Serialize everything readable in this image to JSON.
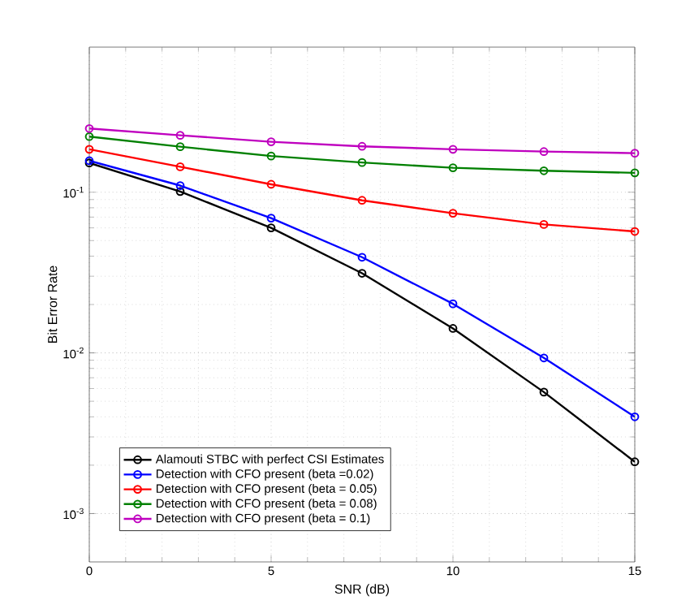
{
  "chart_data": {
    "type": "line",
    "xlabel": "SNR (dB)",
    "ylabel": "Bit Error Rate",
    "x": [
      0,
      2.5,
      5,
      7.5,
      10,
      12.5,
      15
    ],
    "series": [
      {
        "name": "Alamouti STBC with perfect CSI Estimates",
        "color": "#000000",
        "values": [
          0.152,
          0.101,
          0.06,
          0.0313,
          0.0142,
          0.0057,
          0.0021
        ]
      },
      {
        "name": "Detection with CFO present (beta =0.02)",
        "color": "#0000ff",
        "values": [
          0.157,
          0.11,
          0.069,
          0.0394,
          0.0202,
          0.0093,
          0.004
        ]
      },
      {
        "name": "Detection with CFO present (beta = 0.05)",
        "color": "#ff0000",
        "values": [
          0.185,
          0.144,
          0.112,
          0.089,
          0.074,
          0.063,
          0.057
        ]
      },
      {
        "name": "Detection with CFO present (beta = 0.08)",
        "color": "#008000",
        "values": [
          0.222,
          0.192,
          0.168,
          0.153,
          0.142,
          0.136,
          0.132
        ]
      },
      {
        "name": "Detection with CFO present (beta = 0.1)",
        "color": "#bf00bf",
        "values": [
          0.249,
          0.226,
          0.206,
          0.193,
          0.185,
          0.179,
          0.175
        ]
      }
    ],
    "xlim": [
      0,
      15
    ],
    "xticks": [
      0,
      5,
      10,
      15
    ],
    "ylim": [
      0.0005,
      0.8
    ],
    "yticks": [
      {
        "value": 0.001,
        "label": "10$^{-3}$"
      },
      {
        "value": 0.01,
        "label": "10$^{-2}$"
      },
      {
        "value": 0.1,
        "label": "10$^{-1}$"
      }
    ],
    "log": "y",
    "grid": true,
    "legend": "bottom left",
    "marker": "circle",
    "line_style": "solid"
  }
}
